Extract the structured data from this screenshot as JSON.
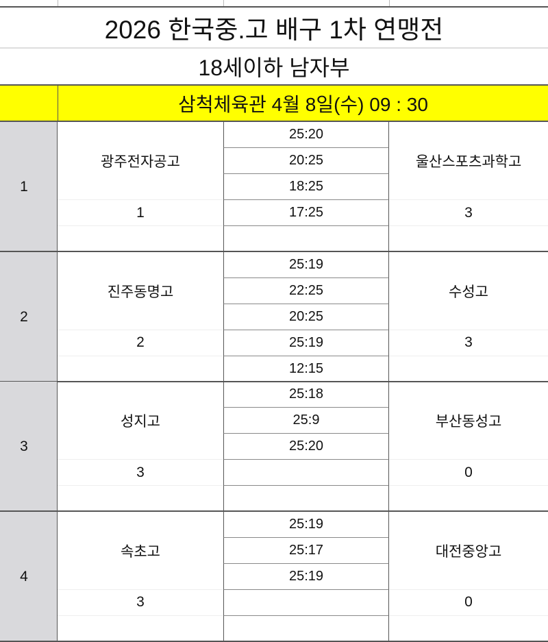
{
  "title": "2026 한국중.고 배구 1차 연맹전",
  "subtitle": "18세이하 남자부",
  "venue": "삼척체육관 4월 8일(수) 09 : 30",
  "highlight_color": "#ffff00",
  "matches": [
    {
      "no": "1",
      "team_a": "광주전자공고",
      "score_a": "1",
      "team_b": "울산스포츠과학고",
      "score_b": "3",
      "sets": [
        "25:20",
        "20:25",
        "18:25",
        "17:25",
        ""
      ]
    },
    {
      "no": "2",
      "team_a": "진주동명고",
      "score_a": "2",
      "team_b": "수성고",
      "score_b": "3",
      "sets": [
        "25:19",
        "22:25",
        "20:25",
        "25:19",
        "12:15"
      ]
    },
    {
      "no": "3",
      "team_a": "성지고",
      "score_a": "3",
      "team_b": "부산동성고",
      "score_b": "0",
      "sets": [
        "25:18",
        "25:9",
        "25:20",
        "",
        ""
      ]
    },
    {
      "no": "4",
      "team_a": "속초고",
      "score_a": "3",
      "team_b": "대전중앙고",
      "score_b": "0",
      "sets": [
        "25:19",
        "25:17",
        "25:19",
        "",
        ""
      ]
    }
  ]
}
